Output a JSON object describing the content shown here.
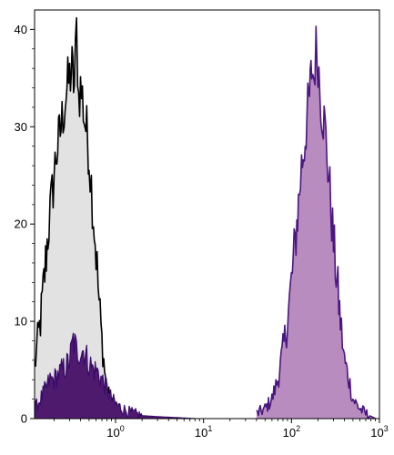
{
  "chart_data": {
    "type": "area",
    "title": "",
    "xlabel": "",
    "ylabel": "",
    "x_scale": "log",
    "xlim": [
      0.12,
      1000
    ],
    "ylim": [
      0,
      42
    ],
    "grid": false,
    "legend": "none",
    "x_ticks": [
      {
        "value": 1,
        "base": "10",
        "exp": "0"
      },
      {
        "value": 10,
        "base": "10",
        "exp": "1"
      },
      {
        "value": 100,
        "base": "10",
        "exp": "2"
      },
      {
        "value": 1000,
        "base": "10",
        "exp": "3"
      }
    ],
    "y_ticks": [
      "0",
      "10",
      "20",
      "30",
      "40"
    ],
    "colors": {
      "isotype_fill": "#e2e2e2",
      "isotype_line": "#000000",
      "stained_fill": "#b98cc0",
      "stained_line": "#4a1680",
      "dim_fill": "#4e1a6e",
      "dim_line": "#3a0a6a"
    },
    "series": [
      {
        "style": "isotype",
        "x": [
          0.12,
          0.13,
          0.14,
          0.15,
          0.16,
          0.17,
          0.18,
          0.19,
          0.2,
          0.21,
          0.22,
          0.24,
          0.26,
          0.28,
          0.3,
          0.32,
          0.34,
          0.36,
          0.38,
          0.4,
          0.42,
          0.44,
          0.46,
          0.48,
          0.5,
          0.53,
          0.56,
          0.6,
          0.65,
          0.7,
          0.75,
          0.8,
          0.9,
          1.0,
          1.1
        ],
        "y": [
          5,
          8,
          10,
          13,
          16,
          19,
          21,
          23,
          25,
          27,
          28,
          30,
          32,
          34,
          35,
          36,
          34,
          40,
          33,
          34,
          33,
          31,
          30,
          29,
          27,
          24,
          21,
          17,
          12,
          8,
          5,
          3,
          1.5,
          0.5,
          0
        ]
      },
      {
        "style": "stained",
        "x": [
          40,
          50,
          60,
          70,
          80,
          90,
          100,
          110,
          120,
          130,
          140,
          150,
          160,
          170,
          180,
          190,
          200,
          210,
          220,
          240,
          260,
          280,
          300,
          330,
          360,
          400,
          450,
          500,
          600,
          700,
          900
        ],
        "y": [
          0.5,
          1,
          2,
          4,
          7,
          10,
          14,
          18,
          22,
          26,
          28,
          31,
          33,
          36,
          35,
          38,
          37,
          34,
          32,
          30,
          26,
          22,
          18,
          14,
          10,
          6,
          4,
          2,
          1,
          0.5,
          0
        ]
      },
      {
        "style": "dim",
        "x": [
          0.12,
          0.14,
          0.16,
          0.18,
          0.2,
          0.22,
          0.25,
          0.28,
          0.3,
          0.33,
          0.36,
          0.4,
          0.44,
          0.48,
          0.52,
          0.56,
          0.6,
          0.65,
          0.7,
          0.8,
          0.9,
          1.0,
          1.2,
          1.5,
          2.0,
          3.0,
          5.0,
          8.0
        ],
        "y": [
          1,
          2,
          3,
          4,
          4,
          4.5,
          5,
          5.5,
          6,
          8,
          7,
          7,
          7,
          6,
          5.5,
          5,
          5,
          4.5,
          4,
          3,
          2,
          1.5,
          1,
          0.6,
          0.3,
          0.2,
          0.1,
          0
        ]
      }
    ]
  }
}
